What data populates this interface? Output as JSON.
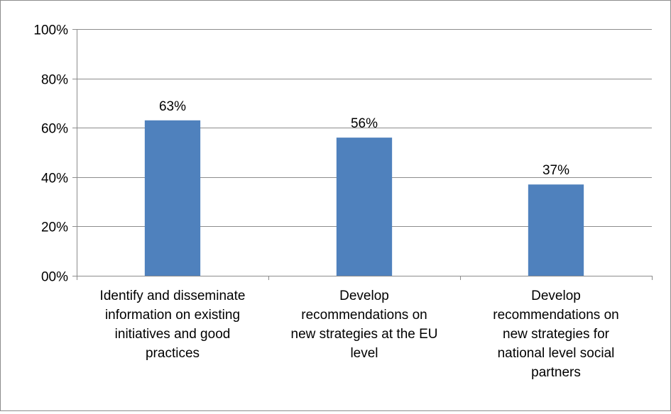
{
  "chart_data": {
    "type": "bar",
    "categories": [
      [
        "Identify and disseminate",
        "information on existing",
        "initiatives and good",
        "practices"
      ],
      [
        "Develop",
        "recommendations on",
        "new strategies at the EU",
        "level"
      ],
      [
        "Develop",
        "recommendations on",
        "new strategies for",
        "national level social",
        "partners"
      ]
    ],
    "series": [
      {
        "values": [
          63,
          56,
          37
        ],
        "data_labels": [
          "63%",
          "56%",
          "37%"
        ],
        "color": "#4f81bd"
      }
    ],
    "ylim": [
      0,
      100
    ],
    "yticks": [
      0,
      20,
      40,
      60,
      80,
      100
    ],
    "ytick_labels": [
      "00%",
      "20%",
      "40%",
      "60%",
      "80%",
      "100%"
    ],
    "grid": true,
    "legend": "none",
    "title": "",
    "xlabel": "",
    "ylabel": ""
  }
}
